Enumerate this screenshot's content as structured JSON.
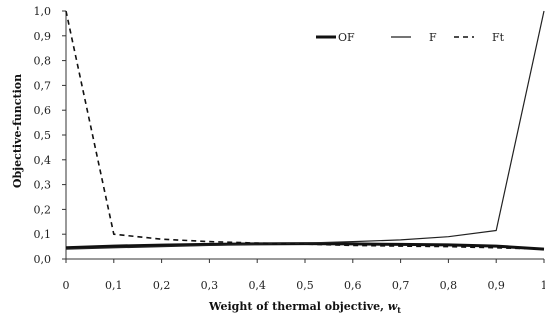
{
  "chart_data": {
    "type": "line",
    "xlabel": "Weight of thermal objective, ",
    "xlabel_var": "w",
    "xlabel_sub": "t",
    "ylabel": "Objective-function",
    "xlim": [
      0,
      1
    ],
    "ylim": [
      0,
      1
    ],
    "x_ticks": [
      "0",
      "0,1",
      "0,2",
      "0,3",
      "0,4",
      "0,5",
      "0,6",
      "0,7",
      "0,8",
      "0,9",
      "1"
    ],
    "y_ticks": [
      "0,0",
      "0,1",
      "0,2",
      "0,3",
      "0,4",
      "0,5",
      "0,6",
      "0,7",
      "0,8",
      "0,9",
      "1,0"
    ],
    "grid": false,
    "legend_position": "top-right",
    "x": [
      0,
      0.1,
      0.2,
      0.3,
      0.4,
      0.5,
      0.6,
      0.7,
      0.8,
      0.9,
      1
    ],
    "series": [
      {
        "name": "OF",
        "style": "thick-solid",
        "values": [
          0.045,
          0.052,
          0.056,
          0.059,
          0.061,
          0.062,
          0.061,
          0.059,
          0.057,
          0.052,
          0.04
        ]
      },
      {
        "name": "F",
        "style": "thin-solid",
        "values": [
          0.04,
          0.045,
          0.05,
          0.055,
          0.06,
          0.064,
          0.07,
          0.077,
          0.09,
          0.115,
          1.0
        ]
      },
      {
        "name": "Ft",
        "style": "dashed",
        "values": [
          1.0,
          0.1,
          0.08,
          0.07,
          0.064,
          0.06,
          0.055,
          0.052,
          0.05,
          0.045,
          0.04
        ]
      }
    ]
  }
}
